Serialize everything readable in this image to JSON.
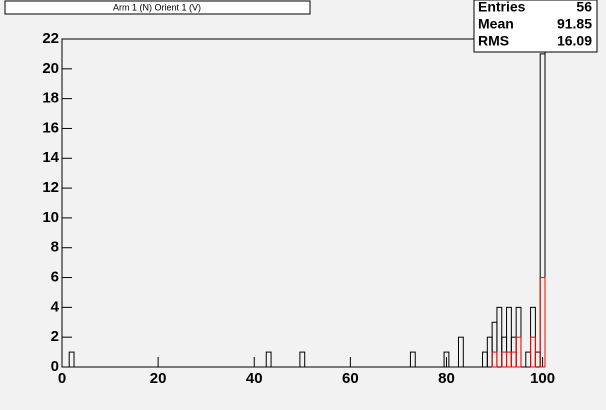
{
  "chart_data": {
    "type": "histogram",
    "title": "Arm 1 (N) Orient 1 (V)",
    "bins": [
      0.5,
      1.5,
      2.5,
      3.5,
      4.5,
      5.5,
      6.5,
      7.5,
      8.5,
      9.5,
      10.5,
      11.5,
      12.5,
      13.5,
      14.5,
      15.5,
      16.5,
      17.5,
      18.5,
      19.5,
      20.5,
      21.5,
      22.5,
      23.5,
      24.5,
      25.5,
      26.5,
      27.5,
      28.5,
      29.5,
      30.5,
      31.5,
      32.5,
      33.5,
      34.5,
      35.5,
      36.5,
      37.5,
      38.5,
      39.5,
      40.5,
      41.5,
      42.5,
      43.5,
      44.5,
      45.5,
      46.5,
      47.5,
      48.5,
      49.5,
      50.5,
      51.5,
      52.5,
      53.5,
      54.5,
      55.5,
      56.5,
      57.5,
      58.5,
      59.5,
      60.5,
      61.5,
      62.5,
      63.5,
      64.5,
      65.5,
      66.5,
      67.5,
      68.5,
      69.5,
      70.5,
      71.5,
      72.5,
      73.5,
      74.5,
      75.5,
      76.5,
      77.5,
      78.5,
      79.5,
      80.5,
      81.5,
      82.5,
      83.5,
      84.5,
      85.5,
      86.5,
      87.5,
      88.5,
      89.5,
      90.5,
      91.5,
      92.5,
      93.5,
      94.5,
      95.5,
      96.5,
      97.5,
      98.5,
      99.5,
      100.5
    ],
    "series": [
      {
        "color": "#000000",
        "values": [
          0,
          1,
          0,
          0,
          0,
          0,
          0,
          0,
          0,
          0,
          0,
          0,
          0,
          0,
          0,
          0,
          0,
          0,
          0,
          0,
          0,
          0,
          0,
          0,
          0,
          0,
          0,
          0,
          0,
          0,
          0,
          0,
          0,
          0,
          0,
          0,
          0,
          0,
          0,
          0,
          0,
          0,
          1,
          0,
          0,
          0,
          0,
          0,
          0,
          1,
          0,
          0,
          0,
          0,
          0,
          0,
          0,
          0,
          0,
          0,
          0,
          0,
          0,
          0,
          0,
          0,
          0,
          0,
          0,
          0,
          0,
          0,
          1,
          0,
          0,
          0,
          0,
          0,
          0,
          1,
          0,
          0,
          2,
          0,
          0,
          0,
          0,
          1,
          2,
          3,
          4,
          2,
          4,
          2,
          4,
          0,
          1,
          4,
          1,
          21
        ]
      },
      {
        "color": "#ff0000",
        "values": [
          0,
          0,
          0,
          0,
          0,
          0,
          0,
          0,
          0,
          0,
          0,
          0,
          0,
          0,
          0,
          0,
          0,
          0,
          0,
          0,
          0,
          0,
          0,
          0,
          0,
          0,
          0,
          0,
          0,
          0,
          0,
          0,
          0,
          0,
          0,
          0,
          0,
          0,
          0,
          0,
          0,
          0,
          0,
          0,
          0,
          0,
          0,
          0,
          0,
          0,
          0,
          0,
          0,
          0,
          0,
          0,
          0,
          0,
          0,
          0,
          0,
          0,
          0,
          0,
          0,
          0,
          0,
          0,
          0,
          0,
          0,
          0,
          0,
          0,
          0,
          0,
          0,
          0,
          0,
          0,
          0,
          0,
          0,
          0,
          0,
          0,
          0,
          0,
          0,
          1,
          0,
          1,
          1,
          1,
          2,
          0,
          0,
          2,
          0,
          6
        ]
      }
    ],
    "xlim": [
      0,
      100.5
    ],
    "xticks": [
      0,
      20,
      40,
      60,
      80,
      100
    ],
    "ylim": [
      0,
      22
    ],
    "yticks": [
      0,
      2,
      4,
      6,
      8,
      10,
      12,
      14,
      16,
      18,
      20,
      22
    ],
    "stats": {
      "labels": [
        "Entries",
        "Mean",
        "RMS"
      ],
      "values": [
        56,
        91.85,
        16.09
      ]
    }
  }
}
